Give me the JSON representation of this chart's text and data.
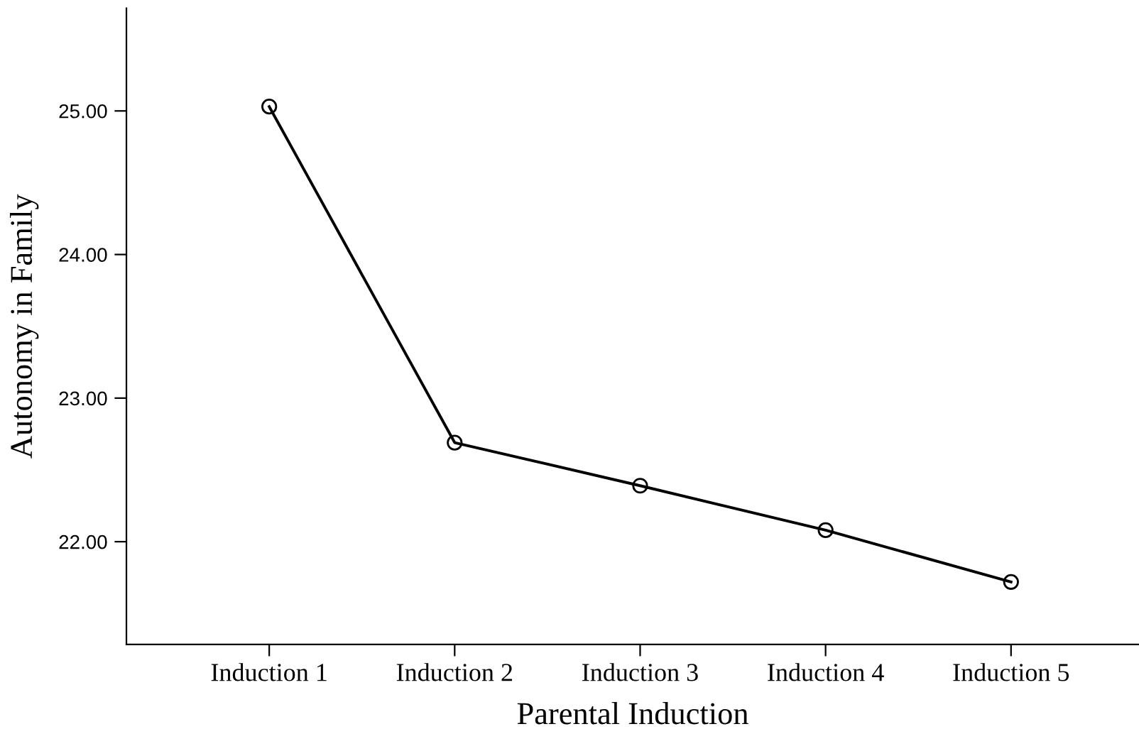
{
  "chart_data": {
    "type": "line",
    "xlabel": "Parental Induction",
    "ylabel": "Autonomy in Family",
    "categories": [
      "Induction 1",
      "Induction 2",
      "Induction 3",
      "Induction 4",
      "Induction 5"
    ],
    "values": [
      25.03,
      22.69,
      22.39,
      22.08,
      21.72
    ],
    "color": "#000000",
    "marker": "circle",
    "line_style": "solid",
    "grid": false,
    "legend": false,
    "ylim": [
      21.285,
      25.715
    ],
    "yticks": [
      {
        "value": 22,
        "label": "22.00"
      },
      {
        "value": 23,
        "label": "23.00"
      },
      {
        "value": 24,
        "label": "24.00"
      },
      {
        "value": 25,
        "label": "25.00"
      }
    ]
  }
}
